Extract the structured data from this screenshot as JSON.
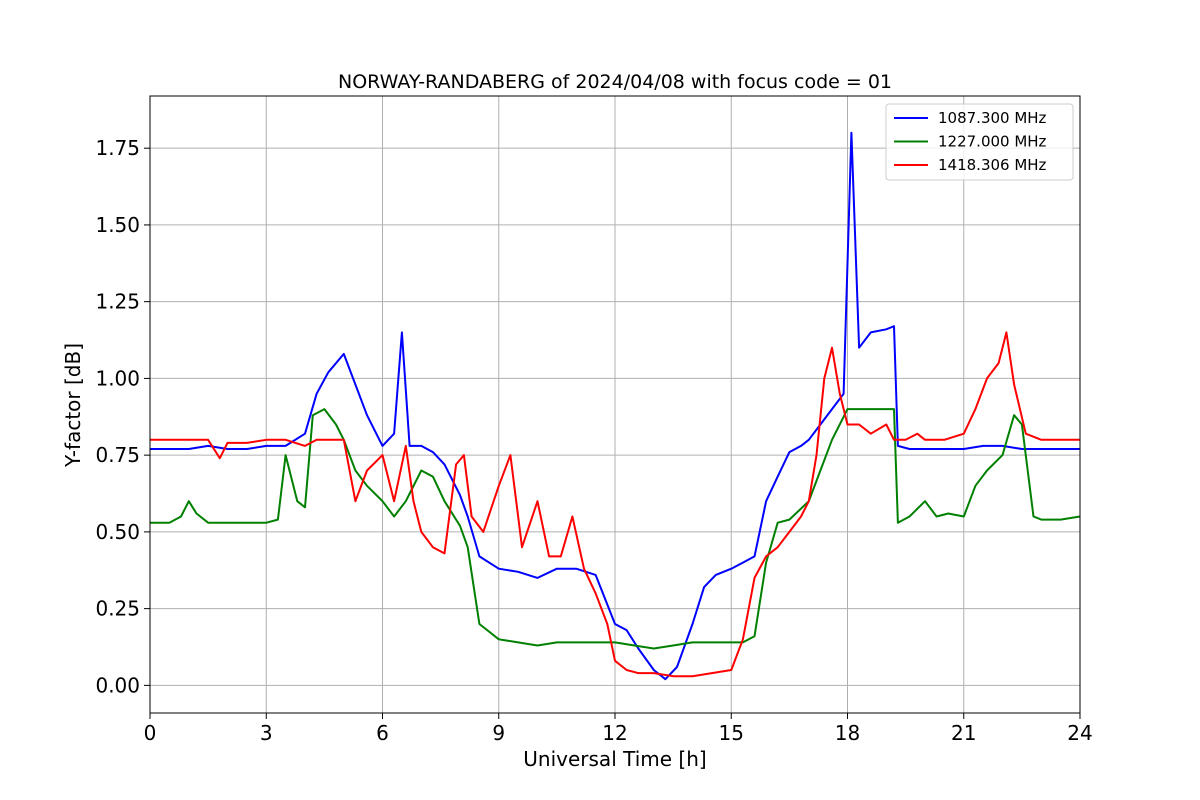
{
  "chart_data": {
    "type": "line",
    "title": "NORWAY-RANDABERG of 2024/04/08 with focus code = 01",
    "xlabel": "Universal Time [h]",
    "ylabel": "Y-factor [dB]",
    "xlim": [
      0,
      24
    ],
    "ylim": [
      -0.09,
      1.92
    ],
    "xticks": [
      0,
      3,
      6,
      9,
      12,
      15,
      18,
      21,
      24
    ],
    "xtick_labels": [
      "0",
      "3",
      "6",
      "9",
      "12",
      "15",
      "18",
      "21",
      "24"
    ],
    "yticks": [
      0.0,
      0.25,
      0.5,
      0.75,
      1.0,
      1.25,
      1.5,
      1.75
    ],
    "ytick_labels": [
      "0.00",
      "0.25",
      "0.50",
      "0.75",
      "1.00",
      "1.25",
      "1.50",
      "1.75"
    ],
    "grid": true,
    "legend_position": "upper right",
    "series": [
      {
        "name": "1087.300 MHz",
        "color": "#0000ff",
        "x": [
          0,
          0.5,
          1,
          1.5,
          2,
          2.5,
          3,
          3.5,
          4,
          4.3,
          4.6,
          5,
          5.3,
          5.6,
          6,
          6.3,
          6.5,
          6.7,
          7,
          7.3,
          7.6,
          8,
          8.2,
          8.5,
          9,
          9.5,
          10,
          10.5,
          11,
          11.5,
          12,
          12.3,
          12.6,
          13,
          13.3,
          13.6,
          14,
          14.3,
          14.6,
          15,
          15.3,
          15.6,
          15.9,
          16.2,
          16.5,
          16.8,
          17,
          17.3,
          17.6,
          17.9,
          18.1,
          18.3,
          18.6,
          19,
          19.2,
          19.3,
          19.6,
          20,
          20.5,
          21,
          21.5,
          22,
          22.5,
          23,
          23.5,
          24
        ],
        "y": [
          0.77,
          0.77,
          0.77,
          0.78,
          0.77,
          0.77,
          0.78,
          0.78,
          0.82,
          0.95,
          1.02,
          1.08,
          0.98,
          0.88,
          0.78,
          0.82,
          1.15,
          0.78,
          0.78,
          0.76,
          0.72,
          0.62,
          0.55,
          0.42,
          0.38,
          0.37,
          0.35,
          0.38,
          0.38,
          0.36,
          0.2,
          0.18,
          0.12,
          0.05,
          0.02,
          0.06,
          0.2,
          0.32,
          0.36,
          0.38,
          0.4,
          0.42,
          0.6,
          0.68,
          0.76,
          0.78,
          0.8,
          0.85,
          0.9,
          0.95,
          1.8,
          1.1,
          1.15,
          1.16,
          1.17,
          0.78,
          0.77,
          0.77,
          0.77,
          0.77,
          0.78,
          0.78,
          0.77,
          0.77,
          0.77,
          0.77
        ]
      },
      {
        "name": "1227.000 MHz",
        "color": "#008000",
        "x": [
          0,
          0.5,
          0.8,
          1,
          1.2,
          1.5,
          2,
          2.5,
          3,
          3.3,
          3.5,
          3.8,
          4,
          4.2,
          4.5,
          4.8,
          5,
          5.3,
          5.6,
          6,
          6.3,
          6.6,
          7,
          7.3,
          7.6,
          8,
          8.2,
          8.5,
          9,
          9.5,
          10,
          10.5,
          11,
          11.5,
          12,
          12.5,
          13,
          13.5,
          14,
          14.5,
          15,
          15.3,
          15.6,
          15.9,
          16.2,
          16.5,
          17,
          17.3,
          17.6,
          18,
          18.5,
          19,
          19.2,
          19.3,
          19.6,
          20,
          20.3,
          20.6,
          21,
          21.3,
          21.6,
          22,
          22.3,
          22.5,
          22.8,
          23,
          23.5,
          24
        ],
        "y": [
          0.53,
          0.53,
          0.55,
          0.6,
          0.56,
          0.53,
          0.53,
          0.53,
          0.53,
          0.54,
          0.75,
          0.6,
          0.58,
          0.88,
          0.9,
          0.85,
          0.8,
          0.7,
          0.65,
          0.6,
          0.55,
          0.6,
          0.7,
          0.68,
          0.6,
          0.52,
          0.45,
          0.2,
          0.15,
          0.14,
          0.13,
          0.14,
          0.14,
          0.14,
          0.14,
          0.13,
          0.12,
          0.13,
          0.14,
          0.14,
          0.14,
          0.14,
          0.16,
          0.4,
          0.53,
          0.54,
          0.6,
          0.7,
          0.8,
          0.9,
          0.9,
          0.9,
          0.9,
          0.53,
          0.55,
          0.6,
          0.55,
          0.56,
          0.55,
          0.65,
          0.7,
          0.75,
          0.88,
          0.85,
          0.55,
          0.54,
          0.54,
          0.55
        ]
      },
      {
        "name": "1418.306 MHz",
        "color": "#ff0000",
        "x": [
          0,
          0.5,
          1,
          1.5,
          1.8,
          2,
          2.5,
          3,
          3.5,
          4,
          4.3,
          4.6,
          5,
          5.3,
          5.6,
          6,
          6.3,
          6.6,
          6.8,
          7,
          7.3,
          7.6,
          7.9,
          8.1,
          8.3,
          8.6,
          9,
          9.3,
          9.6,
          10,
          10.3,
          10.6,
          10.9,
          11.2,
          11.5,
          11.8,
          12,
          12.3,
          12.6,
          13,
          13.5,
          14,
          14.5,
          15,
          15.3,
          15.6,
          15.9,
          16.2,
          16.5,
          16.8,
          17,
          17.2,
          17.4,
          17.6,
          17.8,
          18,
          18.3,
          18.6,
          19,
          19.2,
          19.3,
          19.5,
          19.8,
          20,
          20.5,
          21,
          21.3,
          21.6,
          21.9,
          22.1,
          22.3,
          22.6,
          23,
          23.5,
          24
        ],
        "y": [
          0.8,
          0.8,
          0.8,
          0.8,
          0.74,
          0.79,
          0.79,
          0.8,
          0.8,
          0.78,
          0.8,
          0.8,
          0.8,
          0.6,
          0.7,
          0.75,
          0.6,
          0.78,
          0.6,
          0.5,
          0.45,
          0.43,
          0.72,
          0.75,
          0.55,
          0.5,
          0.65,
          0.75,
          0.45,
          0.6,
          0.42,
          0.42,
          0.55,
          0.38,
          0.3,
          0.2,
          0.08,
          0.05,
          0.04,
          0.04,
          0.03,
          0.03,
          0.04,
          0.05,
          0.15,
          0.35,
          0.42,
          0.45,
          0.5,
          0.55,
          0.6,
          0.75,
          1.0,
          1.1,
          0.95,
          0.85,
          0.85,
          0.82,
          0.85,
          0.8,
          0.8,
          0.8,
          0.82,
          0.8,
          0.8,
          0.82,
          0.9,
          1.0,
          1.05,
          1.15,
          0.98,
          0.82,
          0.8,
          0.8,
          0.8
        ]
      }
    ]
  }
}
